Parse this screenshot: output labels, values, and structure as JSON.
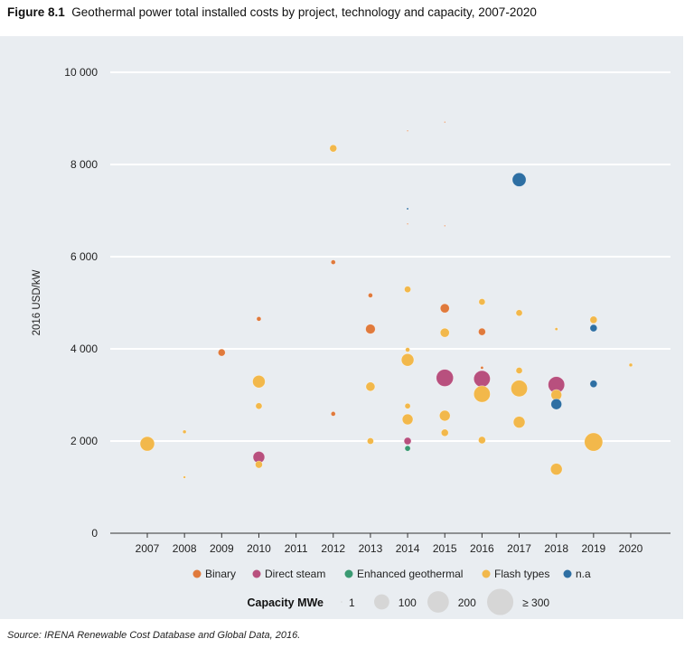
{
  "figure_label": "Figure 8.1",
  "title": "Geothermal power total installed costs by project, technology and capacity, 2007-2020",
  "source": "Source: IRENA Renewable Cost Database and Global Data, 2016.",
  "chart_data": {
    "type": "scatter",
    "title": "Geothermal power total installed costs by project, technology and capacity, 2007-2020",
    "xlabel": "",
    "ylabel": "2016 USD/kW",
    "xlim": [
      2007,
      2020
    ],
    "ylim": [
      0,
      10000
    ],
    "x_ticks": [
      "2007",
      "2008",
      "2009",
      "2010",
      "2011",
      "2012",
      "2013",
      "2014",
      "2015",
      "2016",
      "2017",
      "2018",
      "2019",
      "2020"
    ],
    "y_ticks": [
      {
        "v": 0,
        "label": "0"
      },
      {
        "v": 2000,
        "label": "2 000"
      },
      {
        "v": 4000,
        "label": "4 000"
      },
      {
        "v": 6000,
        "label": "6 000"
      },
      {
        "v": 8000,
        "label": "8 000"
      },
      {
        "v": 10000,
        "label": "10 000"
      }
    ],
    "grid": "horizontal",
    "legend_placement": "bottom",
    "series": [
      {
        "name": "Binary",
        "color": "#e07a3c",
        "points": [
          [
            2009,
            3920,
            25
          ],
          [
            2010,
            4650,
            10
          ],
          [
            2012,
            5880,
            10
          ],
          [
            2012,
            2590,
            10
          ],
          [
            2013,
            5160,
            10
          ],
          [
            2013,
            4430,
            45
          ],
          [
            2014,
            8730,
            1
          ],
          [
            2014,
            6710,
            1
          ],
          [
            2015,
            8920,
            1
          ],
          [
            2015,
            6670,
            1
          ],
          [
            2015,
            4880,
            40
          ],
          [
            2016,
            4370,
            25
          ],
          [
            2016,
            3590,
            4
          ]
        ]
      },
      {
        "name": "Direct steam",
        "color": "#b8507e",
        "points": [
          [
            2010,
            1650,
            65
          ],
          [
            2014,
            2000,
            25
          ],
          [
            2015,
            3370,
            140
          ],
          [
            2016,
            3350,
            130
          ],
          [
            2018,
            3220,
            130
          ]
        ]
      },
      {
        "name": "Enhanced geothermal",
        "color": "#3a9a72",
        "points": [
          [
            2014,
            1840,
            15
          ]
        ]
      },
      {
        "name": "Flash types",
        "color": "#f2b84b",
        "points": [
          [
            2007,
            1940,
            100
          ],
          [
            2008,
            2200,
            6
          ],
          [
            2008,
            1215,
            3
          ],
          [
            2010,
            3290,
            75
          ],
          [
            2010,
            2760,
            20
          ],
          [
            2010,
            1490,
            25
          ],
          [
            2012,
            8350,
            25
          ],
          [
            2013,
            3180,
            40
          ],
          [
            2013,
            2000,
            20
          ],
          [
            2014,
            5290,
            20
          ],
          [
            2014,
            3980,
            10
          ],
          [
            2014,
            3760,
            75
          ],
          [
            2014,
            2760,
            15
          ],
          [
            2014,
            2470,
            55
          ],
          [
            2015,
            4350,
            40
          ],
          [
            2015,
            2550,
            55
          ],
          [
            2015,
            2180,
            25
          ],
          [
            2016,
            5020,
            20
          ],
          [
            2016,
            3020,
            130
          ],
          [
            2016,
            2020,
            25
          ],
          [
            2017,
            4780,
            20
          ],
          [
            2017,
            3530,
            20
          ],
          [
            2017,
            3140,
            130
          ],
          [
            2017,
            2410,
            65
          ],
          [
            2018,
            4430,
            4
          ],
          [
            2018,
            3000,
            55
          ],
          [
            2018,
            1390,
            65
          ],
          [
            2019,
            4630,
            25
          ],
          [
            2019,
            1980,
            160
          ],
          [
            2020,
            3650,
            6
          ]
        ]
      },
      {
        "name": "n.a",
        "color": "#2e6fa3",
        "points": [
          [
            2014,
            7040,
            2
          ],
          [
            2017,
            7670,
            90
          ],
          [
            2018,
            2800,
            55
          ],
          [
            2019,
            4450,
            25
          ],
          [
            2019,
            3240,
            25
          ]
        ]
      }
    ],
    "size_legend": {
      "title": "Capacity MWe",
      "entries": [
        {
          "v": 1,
          "label": "1"
        },
        {
          "v": 100,
          "label": "100"
        },
        {
          "v": 200,
          "label": "200"
        },
        {
          "v": 300,
          "label": "≥ 300"
        }
      ]
    },
    "point_format": "[year, 2016 USD/kW, capacity MWe]"
  }
}
